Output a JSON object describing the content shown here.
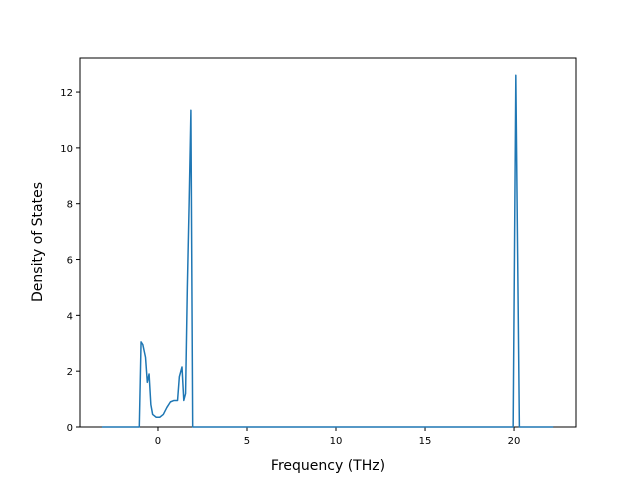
{
  "chart_data": {
    "type": "line",
    "x_label": "Frequency (THz)",
    "y_label": "Density of States",
    "xlim": [
      -4.38,
      23.48
    ],
    "ylim": [
      0,
      13.22
    ],
    "xticks": [
      0,
      5,
      10,
      15,
      20
    ],
    "yticks": [
      0,
      2,
      4,
      6,
      8,
      10,
      12
    ],
    "series": [
      {
        "color": "#1f77b4",
        "x": [
          -3.15,
          -1.05,
          -0.95,
          -0.85,
          -0.7,
          -0.6,
          -0.5,
          -0.4,
          -0.3,
          -0.1,
          0.1,
          0.3,
          0.5,
          0.7,
          0.9,
          1.1,
          1.2,
          1.35,
          1.45,
          1.55,
          1.65,
          1.75,
          1.85,
          1.95,
          19.95,
          20.1,
          20.3,
          22.2
        ],
        "values": [
          0,
          0,
          3.05,
          2.95,
          2.5,
          1.6,
          1.9,
          0.8,
          0.45,
          0.35,
          0.35,
          0.45,
          0.7,
          0.9,
          0.95,
          0.95,
          1.8,
          2.15,
          0.95,
          1.2,
          5.0,
          8.0,
          11.35,
          0,
          0,
          12.6,
          0,
          0
        ]
      }
    ]
  }
}
